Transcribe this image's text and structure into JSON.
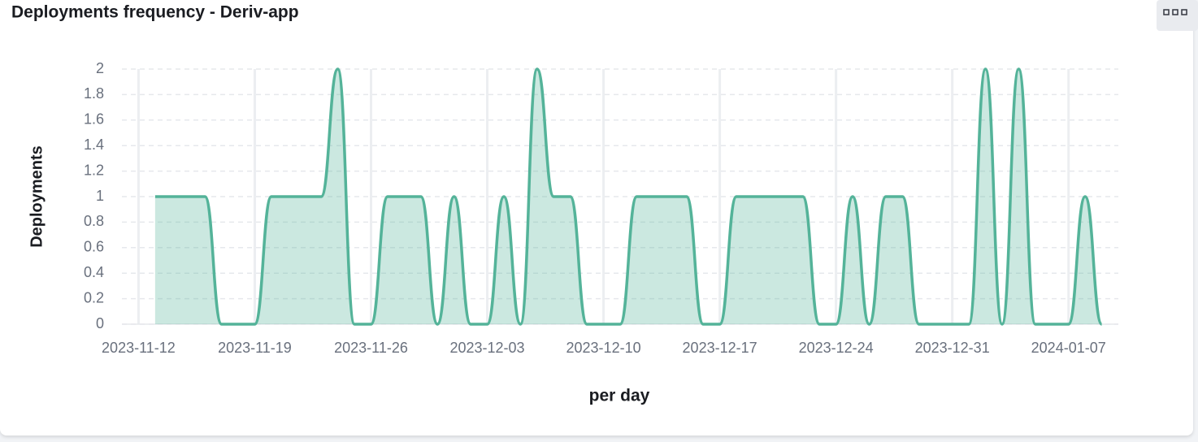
{
  "chart_data": {
    "type": "area",
    "title": "Deployments frequency - Deriv-app",
    "x_label": "per day",
    "y_label": "Deployments",
    "color": "#54b399",
    "grid": true,
    "x": [
      "2023-11-13",
      "2023-11-14",
      "2023-11-15",
      "2023-11-16",
      "2023-11-17",
      "2023-11-18",
      "2023-11-19",
      "2023-11-20",
      "2023-11-21",
      "2023-11-22",
      "2023-11-23",
      "2023-11-24",
      "2023-11-25",
      "2023-11-26",
      "2023-11-27",
      "2023-11-28",
      "2023-11-29",
      "2023-11-30",
      "2023-12-01",
      "2023-12-02",
      "2023-12-03",
      "2023-12-04",
      "2023-12-05",
      "2023-12-06",
      "2023-12-07",
      "2023-12-08",
      "2023-12-09",
      "2023-12-10",
      "2023-12-11",
      "2023-12-12",
      "2023-12-13",
      "2023-12-14",
      "2023-12-15",
      "2023-12-16",
      "2023-12-17",
      "2023-12-18",
      "2023-12-19",
      "2023-12-20",
      "2023-12-21",
      "2023-12-22",
      "2023-12-23",
      "2023-12-24",
      "2023-12-25",
      "2023-12-26",
      "2023-12-27",
      "2023-12-28",
      "2023-12-29",
      "2023-12-30",
      "2023-12-31",
      "2024-01-01",
      "2024-01-02",
      "2024-01-03",
      "2024-01-04",
      "2024-01-05",
      "2024-01-06",
      "2024-01-07",
      "2024-01-08",
      "2024-01-09"
    ],
    "values": [
      1,
      1,
      1,
      1,
      0,
      0,
      0,
      1,
      1,
      1,
      1,
      2,
      0,
      0,
      1,
      1,
      1,
      0,
      1,
      0,
      0,
      1,
      0,
      2,
      1,
      1,
      0,
      0,
      0,
      1,
      1,
      1,
      1,
      0,
      0,
      1,
      1,
      1,
      1,
      1,
      0,
      0,
      1,
      0,
      1,
      1,
      0,
      0,
      0,
      0,
      2,
      0,
      2,
      0,
      0,
      0,
      1,
      0
    ],
    "xlim": [
      "2023-11-11",
      "2024-01-10"
    ],
    "xticks": [
      "2023-11-12",
      "2023-11-19",
      "2023-11-26",
      "2023-12-03",
      "2023-12-10",
      "2023-12-17",
      "2023-12-24",
      "2023-12-31",
      "2024-01-07"
    ],
    "ylim": [
      0,
      2
    ],
    "yticks": [
      0,
      0.2,
      0.4,
      0.6,
      0.8,
      1,
      1.2,
      1.4,
      1.6,
      1.8,
      2
    ]
  }
}
